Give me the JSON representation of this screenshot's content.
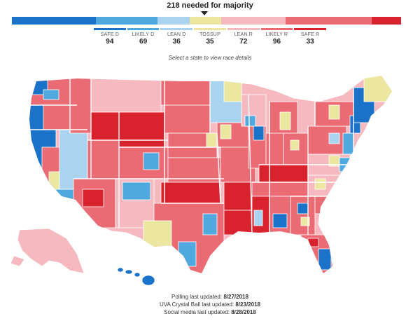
{
  "header": {
    "majority_label": "218 needed for majority"
  },
  "instruction": "Select a state to view race details",
  "colors": {
    "safe_d": "#1a73c8",
    "likely_d": "#4fa8de",
    "lean_d": "#a9d3ee",
    "tossup": "#ece7a0",
    "lean_r": "#f6b9c0",
    "likely_r": "#ea6b74",
    "safe_r": "#d8232e"
  },
  "ratings": [
    {
      "key": "safe_d",
      "label": "SAFE D",
      "count": "94",
      "seats": 94,
      "color": "#1a73c8"
    },
    {
      "key": "likely_d",
      "label": "LIKELY D",
      "count": "69",
      "seats": 69,
      "color": "#4fa8de"
    },
    {
      "key": "lean_d",
      "label": "LEAN D",
      "count": "36",
      "seats": 36,
      "color": "#a9d3ee"
    },
    {
      "key": "tossup",
      "label": "TOSSUP",
      "count": "35",
      "seats": 35,
      "color": "#ece7a0"
    },
    {
      "key": "lean_r",
      "label": "LEAN R",
      "count": "72",
      "seats": 72,
      "color": "#f6b9c0"
    },
    {
      "key": "likely_r",
      "label": "LIKELY R",
      "count": "96",
      "seats": 96,
      "color": "#ea6b74"
    },
    {
      "key": "safe_r",
      "label": "SAFE R",
      "count": "33",
      "seats": 33,
      "color": "#d8232e"
    }
  ],
  "footer": {
    "polling_label": "Polling last updated:",
    "polling_date": "8/27/2018",
    "crystal_label": "UVA Crystal Ball last updated:",
    "crystal_date": "8/23/2018",
    "social_label": "Social media last updated:",
    "social_date": "8/28/2018"
  }
}
